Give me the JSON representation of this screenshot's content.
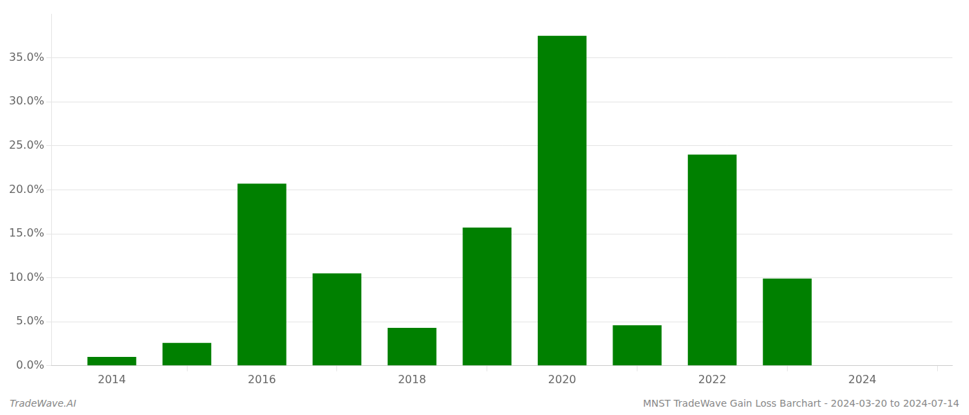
{
  "chart_data": {
    "type": "bar",
    "x": [
      2014,
      2015,
      2016,
      2017,
      2018,
      2019,
      2020,
      2021,
      2022,
      2023,
      2024
    ],
    "values": [
      0.01,
      0.026,
      0.207,
      0.105,
      0.043,
      0.157,
      0.375,
      0.046,
      0.24,
      0.099,
      0.0
    ],
    "color": "#008000",
    "xlim": [
      2013.2,
      2025.2
    ],
    "xticks": [
      2014,
      2016,
      2018,
      2020,
      2022,
      2024
    ],
    "ylim": [
      0,
      0.4
    ],
    "yticks": [
      {
        "value": 0.0,
        "label": "0.0%"
      },
      {
        "value": 0.05,
        "label": "5.0%"
      },
      {
        "value": 0.1,
        "label": "10.0%"
      },
      {
        "value": 0.15,
        "label": "15.0%"
      },
      {
        "value": 0.2,
        "label": "20.0%"
      },
      {
        "value": 0.25,
        "label": "25.0%"
      },
      {
        "value": 0.3,
        "label": "30.0%"
      },
      {
        "value": 0.35,
        "label": "35.0%"
      }
    ],
    "grid": true,
    "annotations": [
      "TradeWave.AI",
      "MNST TradeWave Gain Loss Barchart - 2024-03-20 to 2024-07-14"
    ]
  }
}
